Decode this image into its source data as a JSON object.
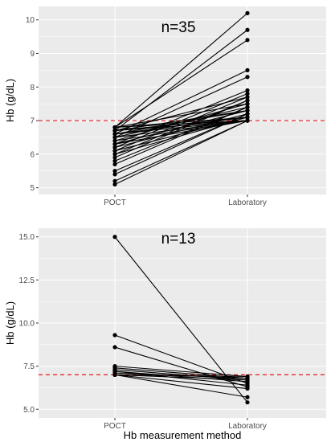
{
  "chart_data": [
    {
      "type": "line",
      "annotation": "n=35",
      "ylabel": "Hb (g/dL)",
      "xlabel": "",
      "categories": [
        "POCT",
        "Laboratory"
      ],
      "ylim": [
        4.8,
        10.4
      ],
      "yticks": [
        5,
        6,
        7,
        8,
        9,
        10
      ],
      "ytick_labels": [
        "5",
        "6",
        "7",
        "8",
        "9",
        "10"
      ],
      "reference_line": {
        "y": 7,
        "color": "#e41a1c",
        "style": "dashed"
      },
      "grid": true,
      "background": "#ebebeb",
      "pairs": [
        [
          6.8,
          10.2
        ],
        [
          6.7,
          9.7
        ],
        [
          6.8,
          9.4
        ],
        [
          6.6,
          8.5
        ],
        [
          6.5,
          8.3
        ],
        [
          6.3,
          7.9
        ],
        [
          6.2,
          7.8
        ],
        [
          6.7,
          7.7
        ],
        [
          6.1,
          7.7
        ],
        [
          6.0,
          7.6
        ],
        [
          5.9,
          7.6
        ],
        [
          6.8,
          7.5
        ],
        [
          6.4,
          7.5
        ],
        [
          6.5,
          7.4
        ],
        [
          5.8,
          7.4
        ],
        [
          5.7,
          7.4
        ],
        [
          6.7,
          7.3
        ],
        [
          6.6,
          7.3
        ],
        [
          6.3,
          7.3
        ],
        [
          6.2,
          7.2
        ],
        [
          5.5,
          7.2
        ],
        [
          5.4,
          7.2
        ],
        [
          6.8,
          7.1
        ],
        [
          6.7,
          7.1
        ],
        [
          6.6,
          7.1
        ],
        [
          6.5,
          7.0
        ],
        [
          5.2,
          7.0
        ],
        [
          5.1,
          7.0
        ],
        [
          6.7,
          7.0
        ],
        [
          6.4,
          7.0
        ],
        [
          6.3,
          7.0
        ],
        [
          6.1,
          7.1
        ],
        [
          6.0,
          7.1
        ],
        [
          6.6,
          7.0
        ],
        [
          6.8,
          7.0
        ]
      ]
    },
    {
      "type": "line",
      "annotation": "n=13",
      "ylabel": "Hb (g/dL)",
      "xlabel": "Hb measurement method",
      "categories": [
        "POCT",
        "Laboratory"
      ],
      "ylim": [
        4.5,
        15.5
      ],
      "yticks": [
        5.0,
        7.5,
        10.0,
        12.5,
        15.0
      ],
      "ytick_labels": [
        "5.0",
        "7.5",
        "10.0",
        "12.5",
        "15.0"
      ],
      "reference_line": {
        "y": 7,
        "color": "#e41a1c",
        "style": "dashed"
      },
      "grid": true,
      "background": "#ebebeb",
      "pairs": [
        [
          15.0,
          5.4
        ],
        [
          9.3,
          6.5
        ],
        [
          8.6,
          6.3
        ],
        [
          7.5,
          6.9
        ],
        [
          7.4,
          6.8
        ],
        [
          7.3,
          6.7
        ],
        [
          7.2,
          6.6
        ],
        [
          7.0,
          6.9
        ],
        [
          7.0,
          6.7
        ],
        [
          7.0,
          6.2
        ],
        [
          7.0,
          5.7
        ],
        [
          7.1,
          6.8
        ],
        [
          7.2,
          6.4
        ]
      ]
    }
  ]
}
